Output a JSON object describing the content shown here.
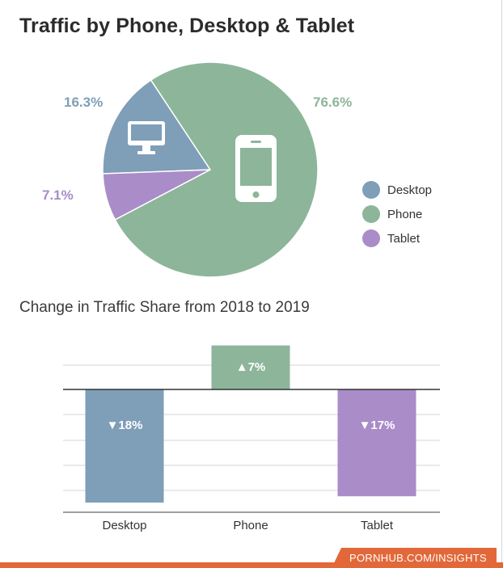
{
  "title": "Traffic by Phone, Desktop & Tablet",
  "subtitle": "Change in Traffic Share from 2018 to 2019",
  "footer": {
    "source": "PORNHUB.COM/INSIGHTS"
  },
  "legend": [
    {
      "label": "Desktop",
      "color": "#7f9eb8"
    },
    {
      "label": "Phone",
      "color": "#8db59a"
    },
    {
      "label": "Tablet",
      "color": "#a98cc8"
    }
  ],
  "chart_data": [
    {
      "type": "pie",
      "slices": [
        {
          "name": "Desktop",
          "value": 16.3,
          "label": "16.3%",
          "color": "#7f9eb8",
          "icon": "desktop-monitor-icon"
        },
        {
          "name": "Phone",
          "value": 76.6,
          "label": "76.6%",
          "color": "#8db59a",
          "icon": "smartphone-icon"
        },
        {
          "name": "Tablet",
          "value": 7.1,
          "label": "7.1%",
          "color": "#a98cc8"
        }
      ]
    },
    {
      "type": "bar",
      "categories": [
        "Desktop",
        "Phone",
        "Tablet"
      ],
      "values": [
        -18,
        7,
        -17
      ],
      "labels": [
        "▼18%",
        "▲7%",
        "▼17%"
      ],
      "colors": [
        "#7f9eb8",
        "#8db59a",
        "#a98cc8"
      ],
      "ylim": [
        -20,
        10
      ],
      "grid": true
    }
  ]
}
